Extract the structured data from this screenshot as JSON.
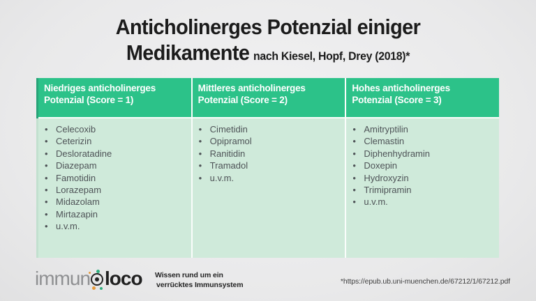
{
  "title": {
    "line1": "Anticholinerges Potenzial einiger",
    "line2_main": "Medikamente",
    "line2_suffix": "nach Kiesel, Hopf, Drey (2018)*"
  },
  "table": {
    "columns": [
      {
        "header_line1": "Niedriges anticholinerges",
        "header_line2": "Potenzial (Score = 1)",
        "items": [
          "Celecoxib",
          "Ceterizin",
          "Desloratadine",
          "Diazepam",
          "Famotidin",
          "Lorazepam",
          "Midazolam",
          "Mirtazapin",
          "u.v.m."
        ]
      },
      {
        "header_line1": "Mittleres anticholinerges",
        "header_line2": "Potenzial (Score = 2)",
        "items": [
          "Cimetidin",
          "Opipramol",
          "Ranitidin",
          "Tramadol",
          "u.v.m."
        ]
      },
      {
        "header_line1": "Hohes anticholinerges",
        "header_line2": "Potenzial (Score = 3)",
        "items": [
          "Amitryptilin",
          "Clemastin",
          "Diphenhydramin",
          "Doxepin",
          "Hydroxyzin",
          "Trimipramin",
          "u.v.m."
        ]
      }
    ]
  },
  "footer": {
    "logo_prefix": "immun",
    "logo_suffix": "loco",
    "tagline_line1": "Wissen rund um ein",
    "tagline_line2": "verrücktes Immunsystem"
  },
  "footnote": {
    "text": "*https://epub.ub.uni-muenchen.de/67212/1/67212.pdf"
  },
  "colors": {
    "header_green": "#2cc289",
    "body_green": "#cfeada",
    "divider_white": "#fafdfb",
    "title_text": "#1b1b1b",
    "item_text": "#4e5357",
    "logo_gray": "#8f9092",
    "logo_black": "#202020",
    "accent_green_dot": "#2fae7e",
    "accent_orange_dot": "#e69a3c"
  }
}
